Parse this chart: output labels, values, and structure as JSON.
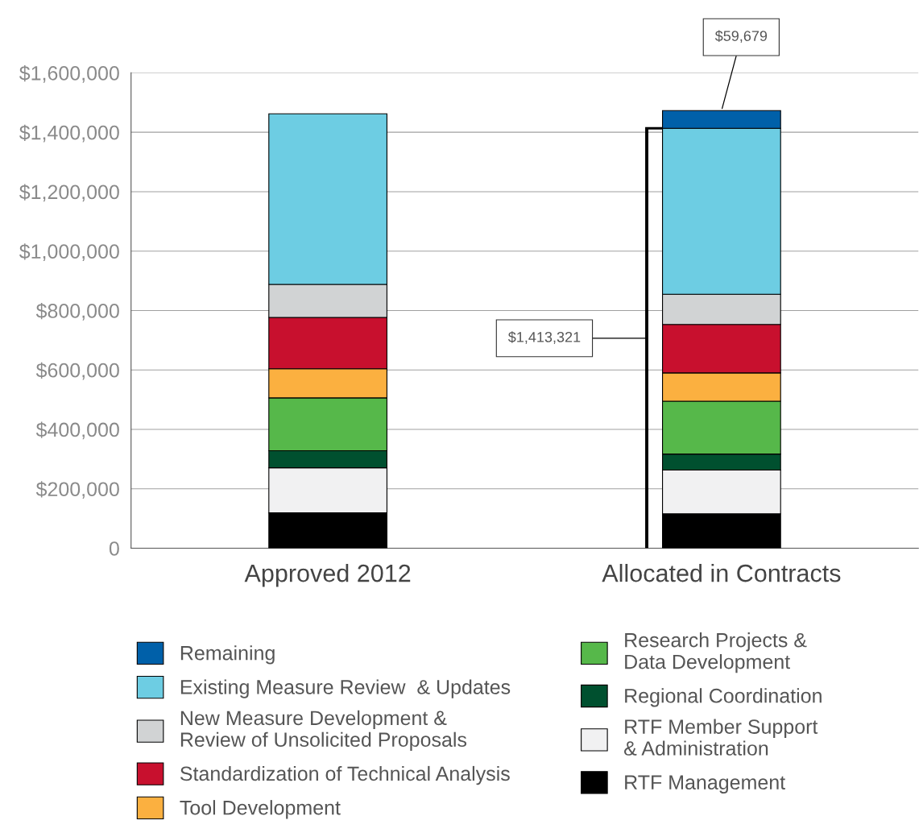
{
  "chart_data": {
    "type": "bar",
    "stacked": true,
    "categories": [
      "Approved 2012",
      "Allocated in Contracts"
    ],
    "series": [
      {
        "name": "RTF Management",
        "color": "#000000",
        "values": [
          119000,
          116000
        ]
      },
      {
        "name": "RTF Member Support\n& Administration",
        "color": "#f1f1f2",
        "values": [
          152000,
          147000
        ]
      },
      {
        "name": "Regional Coordination",
        "color": "#00502f",
        "values": [
          57000,
          54000
        ]
      },
      {
        "name": "Research Projects &\nData Development",
        "color": "#56b84a",
        "values": [
          178000,
          178000
        ]
      },
      {
        "name": "Tool Development",
        "color": "#fbb040",
        "values": [
          98000,
          95000
        ]
      },
      {
        "name": "Standardization of Technical Analysis",
        "color": "#c8102e",
        "values": [
          173000,
          163000
        ]
      },
      {
        "name": "New Measure Development &\nReview of Unsolicited Proposals",
        "color": "#d1d3d4",
        "values": [
          111000,
          102000
        ]
      },
      {
        "name": "Existing Measure Review  & Updates",
        "color": "#6dcde3",
        "values": [
          574000,
          558321
        ]
      },
      {
        "name": "Remaining",
        "color": "#0060a9",
        "values": [
          null,
          59679
        ]
      }
    ],
    "ylim": [
      0,
      1600000
    ],
    "yticks": [
      {
        "value": 0,
        "label": "0"
      },
      {
        "value": 200000,
        "label": "$200,000"
      },
      {
        "value": 400000,
        "label": "$400,000"
      },
      {
        "value": 600000,
        "label": "$600,000"
      },
      {
        "value": 800000,
        "label": "$800,000"
      },
      {
        "value": 1000000,
        "label": "$1,000,000"
      },
      {
        "value": 1200000,
        "label": "$1,200,000"
      },
      {
        "value": 1400000,
        "label": "$1,400,000"
      },
      {
        "value": 1600000,
        "label": "$1,600,000"
      }
    ],
    "grid": "y",
    "legend": "bottom",
    "annotations": [
      "$1,413,321",
      {
        "text": "$59,679",
        "x": "Allocated in Contracts",
        "y": 1473000
      }
    ]
  }
}
